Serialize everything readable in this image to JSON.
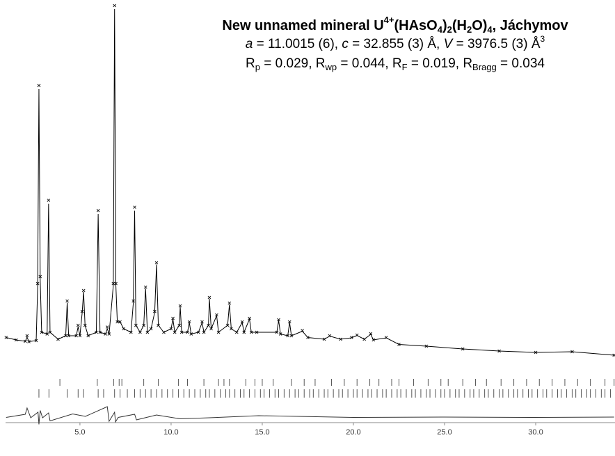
{
  "chart_data": {
    "type": "line",
    "title": [
      "New unnamed mineral U",
      "4+",
      "(HAsO",
      "4",
      ")",
      "2",
      "(H",
      "2",
      "O)",
      "4",
      ", Jáchymov"
    ],
    "subtitle": [
      "a",
      " = 11.0015 (6), ",
      "c",
      " = 32.855 (3) Å, ",
      "V",
      " = 3976.5 (3) Å",
      "3"
    ],
    "agreement": [
      "R",
      "p",
      " = 0.029, R",
      "wp",
      " = 0.044, R",
      "F",
      " = 0.019, R",
      "Bragg",
      " = 0.034"
    ],
    "xlim": [
      0.92,
      34.35
    ],
    "ylim": [
      -20,
      100
    ],
    "xticks": [
      {
        "value": 5,
        "label": "5.0"
      },
      {
        "value": 10,
        "label": "10.0"
      },
      {
        "value": 15,
        "label": "15.0"
      },
      {
        "value": 20,
        "label": "20.0"
      },
      {
        "value": 25,
        "label": "25.0"
      },
      {
        "value": 30,
        "label": "30.0"
      }
    ],
    "x": [
      0.95,
      1.5,
      2.0,
      2.1,
      2.2,
      2.6,
      2.68,
      2.75,
      2.82,
      2.9,
      3.2,
      3.28,
      3.36,
      3.8,
      4.22,
      4.3,
      4.38,
      4.8,
      4.9,
      5.0,
      5.12,
      5.2,
      5.28,
      5.45,
      5.9,
      6.0,
      6.1,
      6.4,
      6.5,
      6.6,
      6.83,
      6.9,
      6.97,
      7.05,
      7.2,
      7.4,
      7.8,
      7.93,
      8.0,
      8.07,
      8.3,
      8.5,
      8.6,
      8.7,
      8.9,
      9.1,
      9.2,
      9.3,
      9.6,
      10.0,
      10.1,
      10.2,
      10.45,
      10.5,
      10.58,
      10.9,
      11.0,
      11.1,
      11.5,
      11.7,
      11.8,
      12.05,
      12.1,
      12.2,
      12.5,
      12.6,
      13.1,
      13.2,
      13.3,
      13.6,
      13.9,
      14.0,
      14.3,
      14.4,
      14.7,
      15.8,
      15.9,
      16.0,
      16.4,
      16.5,
      16.6,
      17.2,
      17.5,
      18.4,
      18.7,
      19.3,
      19.9,
      20.2,
      20.6,
      20.95,
      21.1,
      21.8,
      22.5,
      24,
      26,
      28,
      30,
      32,
      34.3
    ],
    "series": [
      {
        "style": "cross",
        "color": "#222222",
        "values": [
          4.5,
          3.8,
          3.4,
          5.0,
          3.3,
          3.6,
          20,
          77,
          22,
          6,
          5.5,
          44,
          6,
          4,
          5,
          15,
          5,
          5,
          8,
          5,
          12,
          18,
          8,
          5,
          6,
          41,
          6,
          5.5,
          7.5,
          5.5,
          20,
          100,
          20,
          9,
          9,
          7,
          6,
          15,
          42,
          8,
          6,
          8,
          19,
          6,
          7,
          12,
          26,
          8,
          6,
          7,
          10,
          6,
          8,
          13.6,
          6,
          6,
          9,
          5.5,
          6,
          9,
          6,
          8,
          16,
          7,
          11,
          6,
          8,
          14.4,
          7,
          6,
          9,
          6,
          10,
          6,
          6,
          6,
          9.6,
          5.5,
          5,
          9,
          5,
          6.5,
          4.5,
          4,
          5,
          4,
          4.5,
          5.2,
          4,
          5.6,
          3.8,
          4.5,
          2.5,
          2,
          1.2,
          0.6,
          0.2,
          0.4,
          -0.6
        ]
      },
      {
        "style": "line",
        "color": "#000000",
        "values": [
          4.5,
          3.8,
          3.4,
          4.6,
          3.3,
          3.6,
          19,
          76,
          21,
          6,
          5.5,
          43,
          6,
          4,
          5,
          14.5,
          5,
          5,
          7.6,
          5,
          11.5,
          17.6,
          8,
          5,
          6,
          40,
          6,
          5.5,
          7,
          5.5,
          19.5,
          99,
          19.5,
          9,
          9,
          7,
          6,
          14.6,
          41,
          8,
          6,
          8,
          18.6,
          6,
          7,
          11.7,
          25.5,
          8,
          6,
          7,
          9.8,
          6,
          8,
          13.3,
          6,
          6,
          8.8,
          5.5,
          6,
          8.8,
          6,
          8,
          15.6,
          7,
          10.8,
          6,
          8,
          14,
          7,
          6,
          8.8,
          6,
          9.8,
          6,
          6,
          6,
          9.4,
          5.5,
          5,
          8.8,
          5,
          6.3,
          4.5,
          4,
          4.9,
          4,
          4.4,
          5.1,
          4,
          5.4,
          3.8,
          4.4,
          2.5,
          2,
          1.2,
          0.6,
          0.2,
          0.4,
          -0.6
        ]
      },
      {
        "style": "line",
        "color": "#333333",
        "x": [
          0.95,
          2.0,
          2.1,
          2.3,
          2.7,
          2.75,
          2.82,
          2.95,
          3.28,
          3.36,
          4.6,
          5.3,
          6.5,
          6.6,
          6.9,
          6.95,
          7.1,
          8.0,
          8.1,
          9.2,
          10.5,
          12.1,
          14.8,
          20,
          25,
          30,
          34.3
        ],
        "values": [
          -18.5,
          -17.6,
          -15.8,
          -18.6,
          -17.0,
          -20.5,
          -16.5,
          -18.6,
          -17.2,
          -19.5,
          -17.5,
          -18.2,
          -15.4,
          -19.6,
          -17,
          -19.8,
          -18.5,
          -17.6,
          -19.2,
          -17.8,
          -18.9,
          -18.6,
          -18.0,
          -18.5,
          -18.4,
          -18.5,
          -18.4
        ]
      }
    ],
    "reflections": [
      [
        3.9,
        5.95,
        6.85,
        7.15,
        7.3,
        8.5,
        9.3,
        10.4,
        10.9,
        11.8,
        12.6,
        12.9,
        13.2,
        14.1,
        14.6,
        15.0,
        15.6,
        16.6,
        17.3,
        17.9,
        18.8,
        19.5,
        20.2,
        20.9,
        21.4,
        22.1,
        22.5,
        23.3,
        24.1,
        24.8,
        25.2,
        26.0,
        26.7,
        27.3,
        28.1,
        28.8,
        29.5,
        30.2,
        30.9,
        31.6,
        32.3,
        33.0,
        33.8,
        34.3
      ],
      [
        2.75,
        3.3,
        4.3,
        4.9,
        5.2,
        6.0,
        6.3,
        6.9,
        7.2,
        7.6,
        8.0,
        8.3,
        8.6,
        8.9,
        9.2,
        9.5,
        9.8,
        10.1,
        10.4,
        10.7,
        11.0,
        11.3,
        11.6,
        11.9,
        12.1,
        12.4,
        12.7,
        13.0,
        13.2,
        13.5,
        13.8,
        14.0,
        14.3,
        14.6,
        14.9,
        15.1,
        15.4,
        15.7,
        15.9,
        16.2,
        16.5,
        16.8,
        17.0,
        17.3,
        17.6,
        17.8,
        18.1,
        18.4,
        18.6,
        18.9,
        19.2,
        19.4,
        19.7,
        20.0,
        20.2,
        20.5,
        20.8,
        21.0,
        21.3,
        21.6,
        21.8,
        22.1,
        22.4,
        22.6,
        22.9,
        23.2,
        23.4,
        23.7,
        24.0,
        24.2,
        24.5,
        24.8,
        25.0,
        25.3,
        25.6,
        25.8,
        26.1,
        26.4,
        26.6,
        26.9,
        27.2,
        27.4,
        27.7,
        28.0,
        28.2,
        28.5,
        28.8,
        29.0,
        29.3,
        29.6,
        29.8,
        30.1,
        30.4,
        30.6,
        30.9,
        31.2,
        31.4,
        31.7,
        32.0,
        32.2,
        32.5,
        32.8,
        33.0,
        33.3,
        33.6,
        33.8,
        34.1
      ]
    ]
  }
}
